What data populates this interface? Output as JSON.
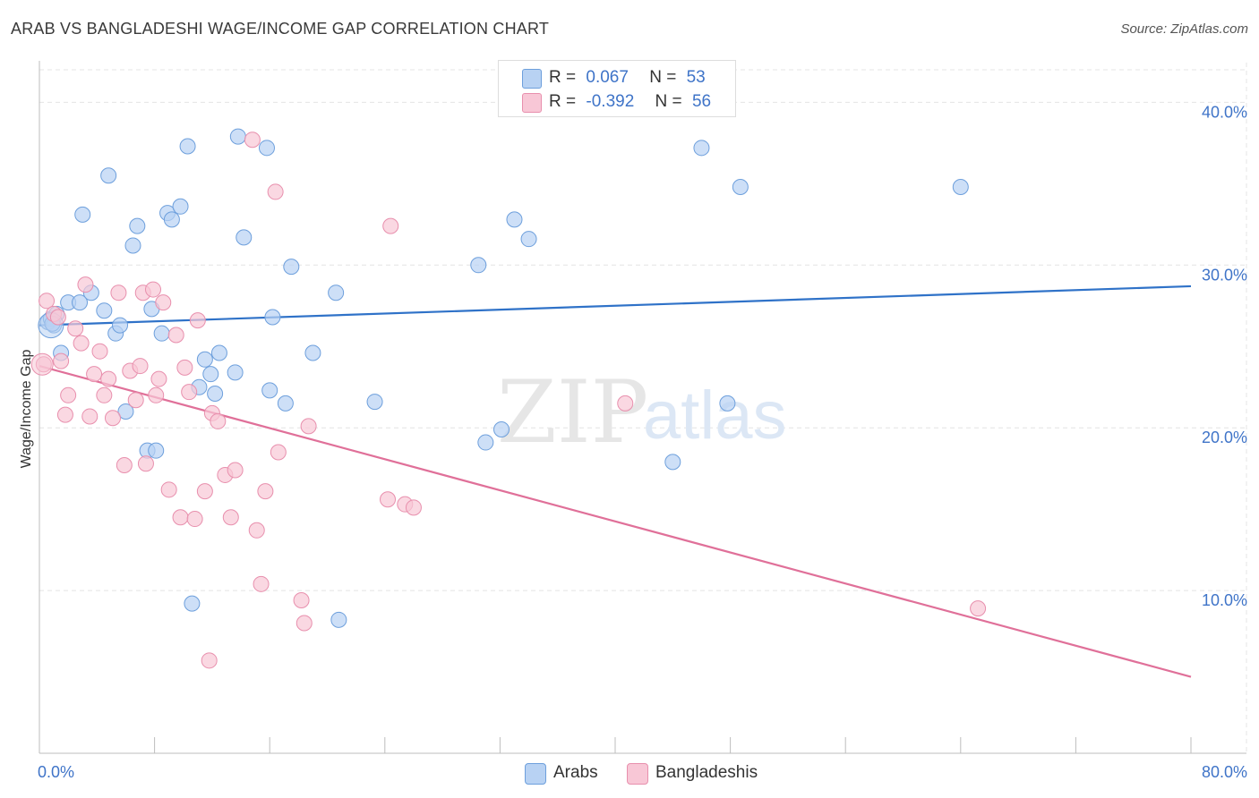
{
  "title": "ARAB VS BANGLADESHI WAGE/INCOME GAP CORRELATION CHART",
  "source": "Source: ZipAtlas.com",
  "watermark": {
    "zip": "ZIP",
    "atlas": "atlas"
  },
  "colors": {
    "arabs_fill": "#b8d2f3",
    "arabs_stroke": "#6d9fdc",
    "arabs_line": "#2f72c8",
    "bangladeshis_fill": "#f8c7d6",
    "bangladeshis_stroke": "#e88fad",
    "bangladeshis_line": "#e07099",
    "tick_label": "#3f74c8",
    "grid": "#e4e4e4"
  },
  "legend": {
    "rows": [
      {
        "r_label": "R =",
        "r_value": "0.067",
        "n_label": "N =",
        "n_value": "53"
      },
      {
        "r_label": "R =",
        "r_value": "-0.392",
        "n_label": "N =",
        "n_value": "56"
      }
    ]
  },
  "chart_data": {
    "type": "scatter",
    "title": "ARAB VS BANGLADESHI WAGE/INCOME GAP CORRELATION CHART",
    "xlabel": "",
    "ylabel": "Wage/Income Gap",
    "xlim": [
      0,
      80
    ],
    "ylim": [
      0,
      42
    ],
    "x_tick_labels": [
      "0.0%",
      "80.0%"
    ],
    "y_ticks": [
      10,
      20,
      30,
      40
    ],
    "y_tick_labels": [
      "10.0%",
      "20.0%",
      "30.0%",
      "40.0%"
    ],
    "grid": true,
    "legend_position": "top-center",
    "series": [
      {
        "name": "Arabs",
        "r": 0.067,
        "n": 53,
        "trend": {
          "x": [
            0,
            80
          ],
          "y": [
            26.3,
            28.7
          ]
        },
        "points": [
          [
            0.6,
            26.5
          ],
          [
            0.8,
            26.7
          ],
          [
            1.0,
            26.3
          ],
          [
            1.2,
            27.0
          ],
          [
            1.5,
            24.6
          ],
          [
            2.0,
            27.7
          ],
          [
            2.8,
            27.7
          ],
          [
            3.0,
            33.1
          ],
          [
            3.6,
            28.3
          ],
          [
            4.5,
            27.2
          ],
          [
            4.8,
            35.5
          ],
          [
            5.3,
            25.8
          ],
          [
            5.6,
            26.3
          ],
          [
            6.0,
            21.0
          ],
          [
            6.5,
            31.2
          ],
          [
            6.8,
            32.4
          ],
          [
            7.5,
            18.6
          ],
          [
            8.1,
            18.6
          ],
          [
            7.8,
            27.3
          ],
          [
            8.5,
            25.8
          ],
          [
            8.9,
            33.2
          ],
          [
            9.2,
            32.8
          ],
          [
            9.8,
            33.6
          ],
          [
            10.3,
            37.3
          ],
          [
            10.6,
            9.2
          ],
          [
            11.1,
            22.5
          ],
          [
            11.5,
            24.2
          ],
          [
            11.9,
            23.3
          ],
          [
            12.2,
            22.1
          ],
          [
            12.5,
            24.6
          ],
          [
            13.6,
            23.4
          ],
          [
            13.8,
            37.9
          ],
          [
            14.2,
            31.7
          ],
          [
            15.8,
            37.2
          ],
          [
            16.0,
            22.3
          ],
          [
            16.2,
            26.8
          ],
          [
            17.1,
            21.5
          ],
          [
            17.5,
            29.9
          ],
          [
            19.0,
            24.6
          ],
          [
            20.6,
            28.3
          ],
          [
            20.8,
            8.2
          ],
          [
            23.3,
            21.6
          ],
          [
            30.5,
            30.0
          ],
          [
            31.0,
            19.1
          ],
          [
            32.1,
            19.9
          ],
          [
            33.0,
            32.8
          ],
          [
            34.0,
            31.6
          ],
          [
            44.0,
            17.9
          ],
          [
            46.0,
            37.2
          ],
          [
            47.8,
            21.5
          ],
          [
            48.7,
            34.8
          ],
          [
            64.0,
            34.8
          ],
          [
            0.9,
            26.4
          ]
        ]
      },
      {
        "name": "Bangladeshis",
        "r": -0.392,
        "n": 56,
        "trend": {
          "x": [
            0,
            80
          ],
          "y": [
            23.8,
            4.7
          ]
        },
        "points": [
          [
            0.3,
            23.9
          ],
          [
            0.5,
            27.8
          ],
          [
            1.0,
            27.0
          ],
          [
            1.3,
            26.8
          ],
          [
            1.5,
            24.1
          ],
          [
            1.8,
            20.8
          ],
          [
            2.0,
            22.0
          ],
          [
            2.5,
            26.1
          ],
          [
            2.9,
            25.2
          ],
          [
            3.2,
            28.8
          ],
          [
            3.5,
            20.7
          ],
          [
            3.8,
            23.3
          ],
          [
            4.2,
            24.7
          ],
          [
            4.5,
            22.0
          ],
          [
            4.8,
            23.0
          ],
          [
            5.1,
            20.6
          ],
          [
            5.5,
            28.3
          ],
          [
            5.9,
            17.7
          ],
          [
            6.3,
            23.5
          ],
          [
            6.7,
            21.7
          ],
          [
            7.0,
            23.8
          ],
          [
            7.2,
            28.3
          ],
          [
            7.4,
            17.8
          ],
          [
            7.9,
            28.5
          ],
          [
            8.1,
            22.0
          ],
          [
            8.3,
            23.0
          ],
          [
            8.6,
            27.7
          ],
          [
            9.0,
            16.2
          ],
          [
            9.5,
            25.7
          ],
          [
            9.8,
            14.5
          ],
          [
            10.1,
            23.7
          ],
          [
            10.4,
            22.2
          ],
          [
            10.8,
            14.4
          ],
          [
            11.0,
            26.6
          ],
          [
            11.5,
            16.1
          ],
          [
            11.8,
            5.7
          ],
          [
            12.0,
            20.9
          ],
          [
            12.4,
            20.4
          ],
          [
            12.9,
            17.1
          ],
          [
            13.3,
            14.5
          ],
          [
            13.6,
            17.4
          ],
          [
            14.8,
            37.7
          ],
          [
            15.1,
            13.7
          ],
          [
            15.4,
            10.4
          ],
          [
            15.7,
            16.1
          ],
          [
            16.4,
            34.5
          ],
          [
            16.6,
            18.5
          ],
          [
            18.2,
            9.4
          ],
          [
            18.4,
            8.0
          ],
          [
            18.7,
            20.1
          ],
          [
            24.2,
            15.6
          ],
          [
            24.4,
            32.4
          ],
          [
            25.4,
            15.3
          ],
          [
            26.0,
            15.1
          ],
          [
            40.7,
            21.5
          ],
          [
            65.2,
            8.9
          ]
        ]
      }
    ]
  }
}
